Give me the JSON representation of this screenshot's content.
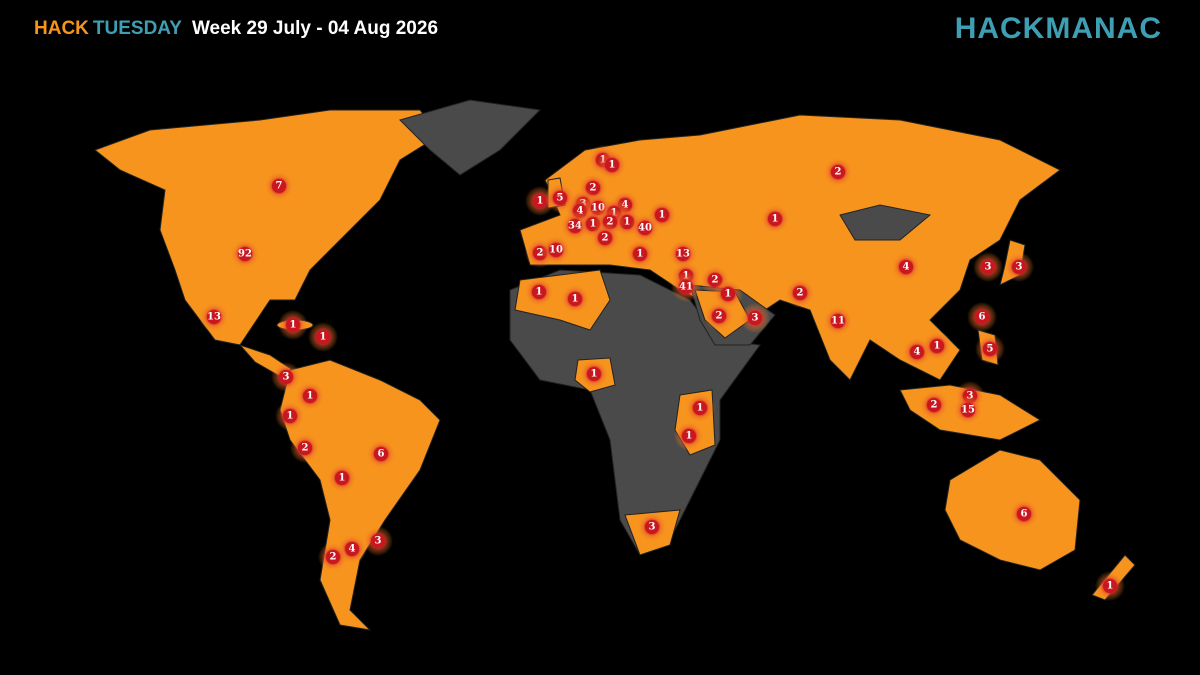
{
  "header": {
    "brand_first": "HACK",
    "brand_second": "TUESDAY",
    "period": "Week 29 July - 04 Aug 2026"
  },
  "logo": "HACKMANAC",
  "markers": [
    7,
    92,
    13,
    1,
    1,
    3,
    1,
    1,
    2,
    6,
    1,
    4,
    2,
    3,
    1,
    5,
    2,
    1,
    1,
    3,
    4,
    10,
    4,
    1,
    1,
    1,
    34,
    1,
    2,
    40,
    2,
    2,
    10,
    1,
    13,
    1,
    41,
    2,
    1,
    2,
    3,
    2,
    1,
    2,
    4,
    3,
    3,
    11,
    6,
    4,
    1,
    5,
    3,
    15,
    2,
    1,
    1,
    1,
    1,
    1,
    3,
    6,
    1
  ]
}
